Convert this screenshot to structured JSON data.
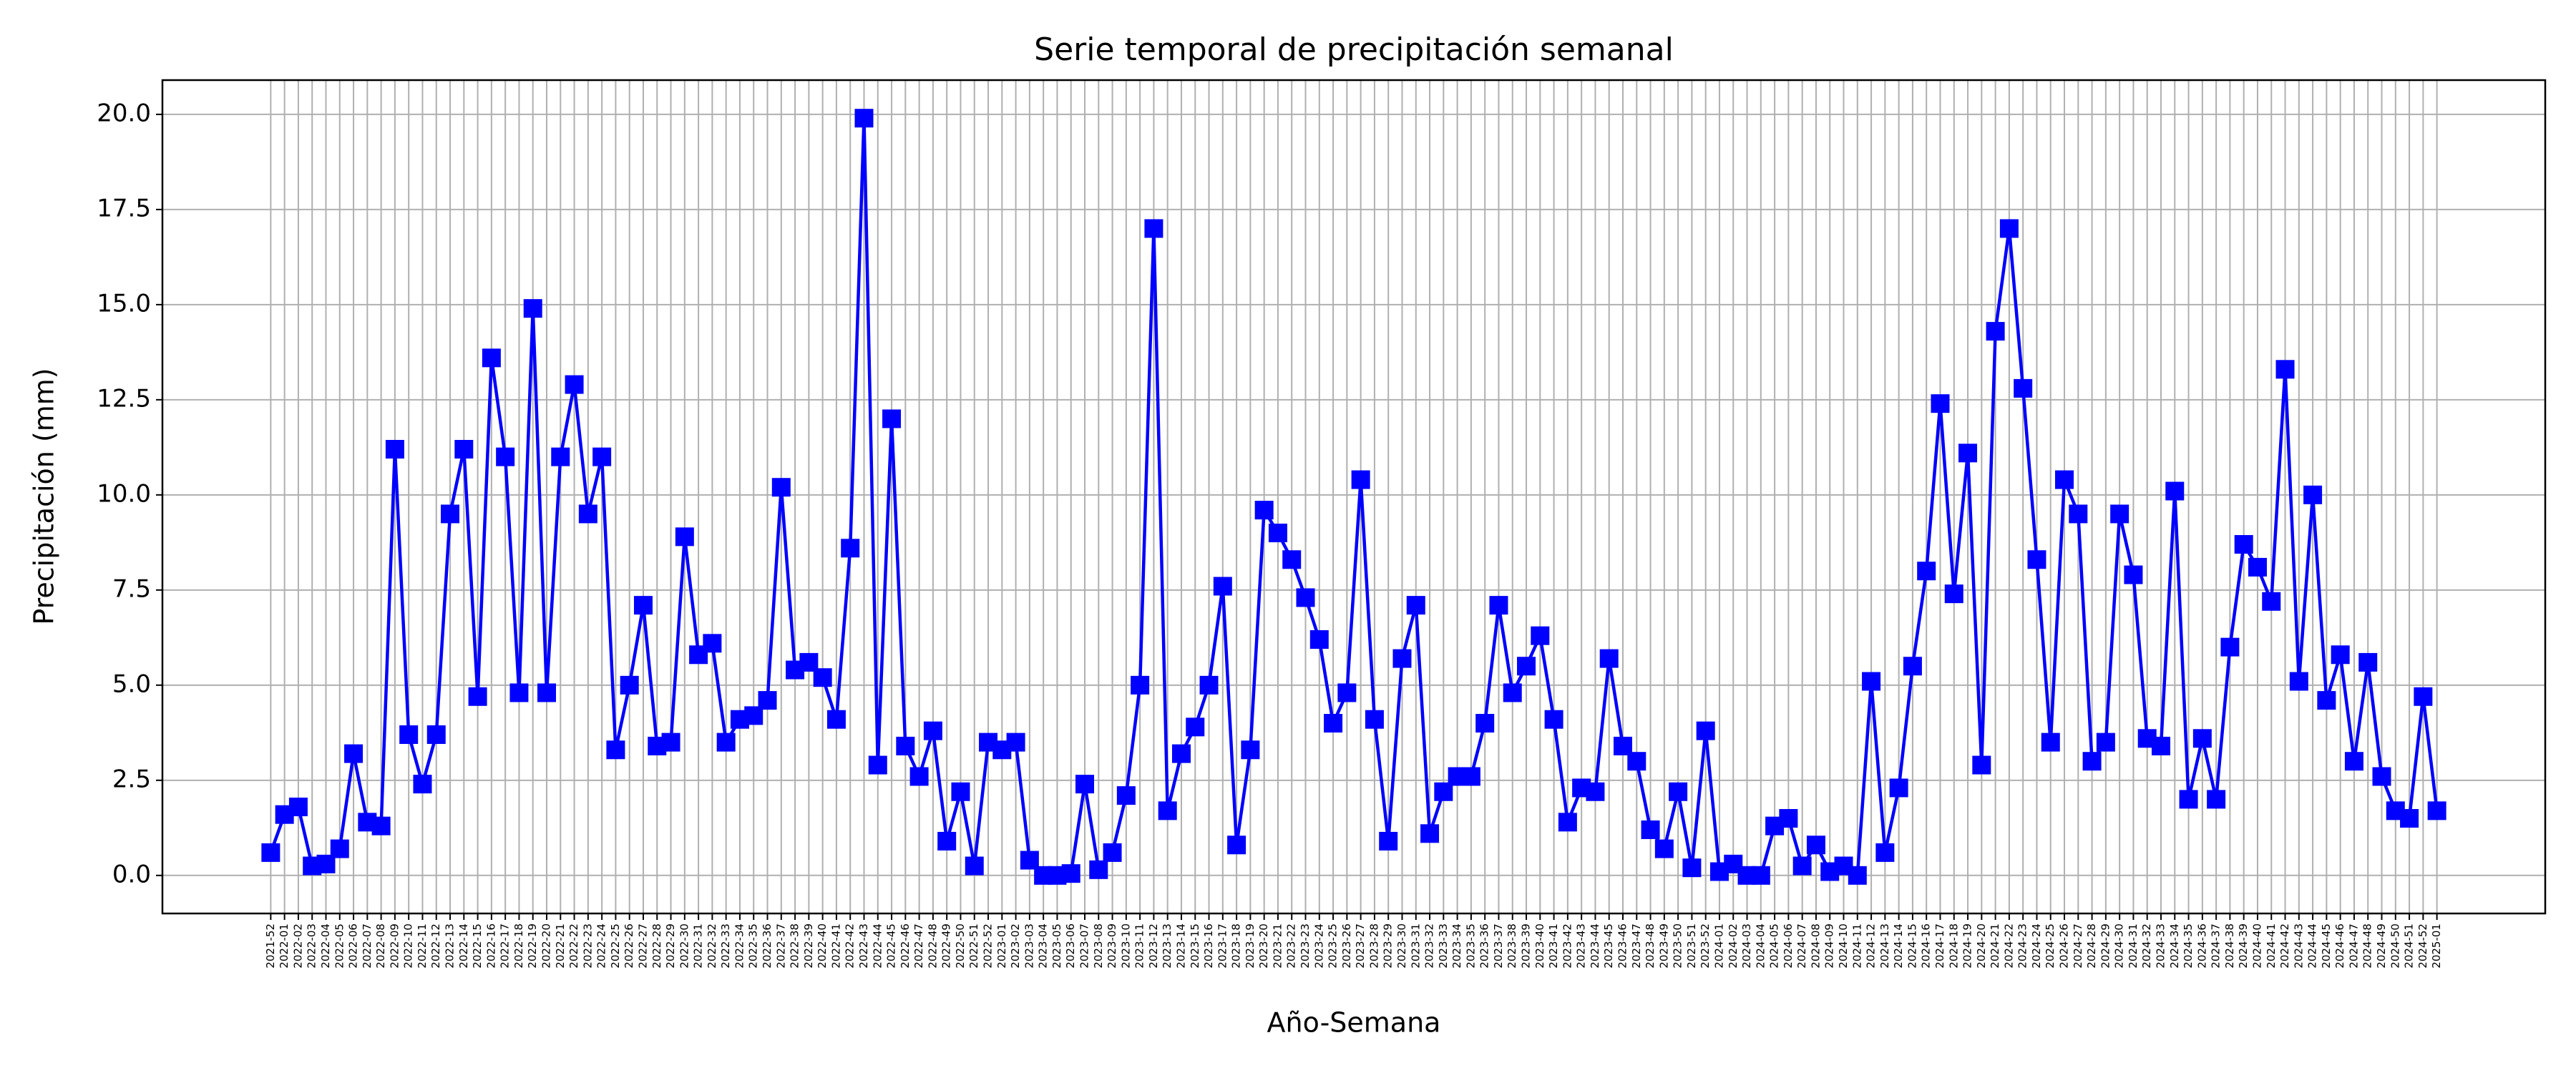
{
  "chart_data": {
    "type": "line",
    "title": "Serie temporal de precipitación semanal",
    "x_label": "Año-Semana",
    "y_label": "Precipitación (mm)",
    "categories": [
      "2021-52",
      "2022-01",
      "2022-02",
      "2022-03",
      "2022-04",
      "2022-05",
      "2022-06",
      "2022-07",
      "2022-08",
      "2022-09",
      "2022-10",
      "2022-11",
      "2022-12",
      "2022-13",
      "2022-14",
      "2022-15",
      "2022-16",
      "2022-17",
      "2022-18",
      "2022-19",
      "2022-20",
      "2022-21",
      "2022-22",
      "2022-23",
      "2022-24",
      "2022-25",
      "2022-26",
      "2022-27",
      "2022-28",
      "2022-29",
      "2022-30",
      "2022-31",
      "2022-32",
      "2022-33",
      "2022-34",
      "2022-35",
      "2022-36",
      "2022-37",
      "2022-38",
      "2022-39",
      "2022-40",
      "2022-41",
      "2022-42",
      "2022-43",
      "2022-44",
      "2022-45",
      "2022-46",
      "2022-47",
      "2022-48",
      "2022-49",
      "2022-50",
      "2022-51",
      "2022-52",
      "2023-01",
      "2023-02",
      "2023-03",
      "2023-04",
      "2023-05",
      "2023-06",
      "2023-07",
      "2023-08",
      "2023-09",
      "2023-10",
      "2023-11",
      "2023-12",
      "2023-13",
      "2023-14",
      "2023-15",
      "2023-16",
      "2023-17",
      "2023-18",
      "2023-19",
      "2023-20",
      "2023-21",
      "2023-22",
      "2023-23",
      "2023-24",
      "2023-25",
      "2023-26",
      "2023-27",
      "2023-28",
      "2023-29",
      "2023-30",
      "2023-31",
      "2023-32",
      "2023-33",
      "2023-34",
      "2023-35",
      "2023-36",
      "2023-37",
      "2023-38",
      "2023-39",
      "2023-40",
      "2023-41",
      "2023-42",
      "2023-43",
      "2023-44",
      "2023-45",
      "2023-46",
      "2023-47",
      "2023-48",
      "2023-49",
      "2023-50",
      "2023-51",
      "2023-52",
      "2024-01",
      "2024-02",
      "2024-03",
      "2024-04",
      "2024-05",
      "2024-06",
      "2024-07",
      "2024-08",
      "2024-09",
      "2024-10",
      "2024-11",
      "2024-12",
      "2024-13",
      "2024-14",
      "2024-15",
      "2024-16",
      "2024-17",
      "2024-18",
      "2024-19",
      "2024-20",
      "2024-21",
      "2024-22",
      "2024-23",
      "2024-24",
      "2024-25",
      "2024-26",
      "2024-27",
      "2024-28",
      "2024-29",
      "2024-30",
      "2024-31",
      "2024-32",
      "2024-33",
      "2024-34",
      "2024-35",
      "2024-36",
      "2024-37",
      "2024-38",
      "2024-39",
      "2024-40",
      "2024-41",
      "2024-42",
      "2024-43",
      "2024-44",
      "2024-45",
      "2024-46",
      "2024-47",
      "2024-48",
      "2024-49",
      "2024-50",
      "2024-51",
      "2024-52",
      "2025-01"
    ],
    "series": [
      {
        "name": "Precipitación",
        "color": "#0000ff",
        "values": [
          0.6,
          1.6,
          1.8,
          0.25,
          0.3,
          0.7,
          3.2,
          1.4,
          1.3,
          11.2,
          3.7,
          2.4,
          3.7,
          9.5,
          11.2,
          4.7,
          13.6,
          11.0,
          4.8,
          14.9,
          4.8,
          11.0,
          12.9,
          9.5,
          11.0,
          3.3,
          5.0,
          7.1,
          3.4,
          3.5,
          8.9,
          5.8,
          6.1,
          3.5,
          4.1,
          4.2,
          4.6,
          10.2,
          5.4,
          5.6,
          5.2,
          4.1,
          8.6,
          19.9,
          2.9,
          12.0,
          3.4,
          2.6,
          3.8,
          0.9,
          2.2,
          0.25,
          3.5,
          3.3,
          3.5,
          0.4,
          0.0,
          0.0,
          0.05,
          2.4,
          0.15,
          0.6,
          2.1,
          5.0,
          17.0,
          1.7,
          3.2,
          3.9,
          5.0,
          7.6,
          0.8,
          3.3,
          9.6,
          9.0,
          8.3,
          7.3,
          6.2,
          4.0,
          4.8,
          10.4,
          4.1,
          0.9,
          5.7,
          7.1,
          1.1,
          2.2,
          2.6,
          2.6,
          4.0,
          7.1,
          4.8,
          5.5,
          6.3,
          4.1,
          1.4,
          2.3,
          2.2,
          5.7,
          3.4,
          3.0,
          1.2,
          0.7,
          2.2,
          0.2,
          3.8,
          0.1,
          0.3,
          0.0,
          0.0,
          1.3,
          1.5,
          0.25,
          0.8,
          0.1,
          0.25,
          0.0,
          5.1,
          0.6,
          2.3,
          5.5,
          8.0,
          12.4,
          7.4,
          11.1,
          2.9,
          14.3,
          17.0,
          12.8,
          8.3,
          3.5,
          10.4,
          9.5,
          3.0,
          3.5,
          9.5,
          7.9,
          3.6,
          3.4,
          10.1,
          2.0,
          3.6,
          2.0,
          6.0,
          8.7,
          8.1,
          7.2,
          13.3,
          5.1,
          10.0,
          4.6,
          5.8,
          3.0,
          5.6,
          2.6,
          1.7,
          1.5,
          4.7,
          1.7
        ]
      }
    ],
    "ylim": [
      -1.0,
      20.9
    ],
    "yticks": [
      {
        "value": 0,
        "label": "0.0"
      },
      2.5,
      {
        "value": 5,
        "label": "5.0"
      },
      7.5,
      {
        "value": 10,
        "label": "10.0"
      },
      12.5,
      {
        "value": 15,
        "label": "15.0"
      },
      17.5,
      {
        "value": 20,
        "label": "20.0"
      }
    ],
    "grid": true,
    "marker": "square"
  }
}
